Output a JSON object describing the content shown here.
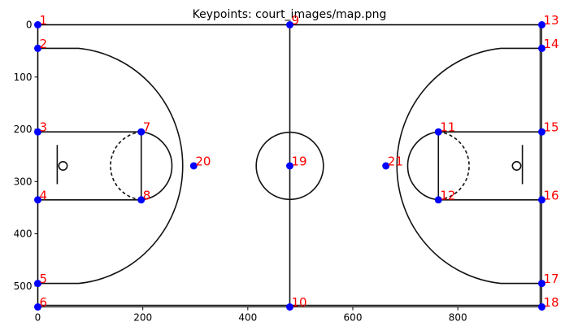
{
  "chart_data": {
    "type": "scatter",
    "title": "Keypoints: court_images/map.png",
    "xlabel": "",
    "ylabel": "",
    "xlim": [
      0,
      960
    ],
    "ylim": [
      540,
      0
    ],
    "x_ticks": [
      0,
      200,
      400,
      600,
      800
    ],
    "y_ticks": [
      0,
      100,
      200,
      300,
      400,
      500
    ],
    "marker_color": "#0000ff",
    "label_color": "#ff0000",
    "court_line_color": "#111111",
    "keypoints": [
      {
        "label": "1",
        "x": 0,
        "y": 0
      },
      {
        "label": "2",
        "x": 0,
        "y": 45
      },
      {
        "label": "3",
        "x": 0,
        "y": 205
      },
      {
        "label": "4",
        "x": 0,
        "y": 335
      },
      {
        "label": "5",
        "x": 0,
        "y": 495
      },
      {
        "label": "6",
        "x": 0,
        "y": 540
      },
      {
        "label": "7",
        "x": 197,
        "y": 205
      },
      {
        "label": "8",
        "x": 197,
        "y": 335
      },
      {
        "label": "9",
        "x": 480,
        "y": 0
      },
      {
        "label": "10",
        "x": 480,
        "y": 540
      },
      {
        "label": "11",
        "x": 763,
        "y": 205
      },
      {
        "label": "12",
        "x": 763,
        "y": 335
      },
      {
        "label": "13",
        "x": 960,
        "y": 0
      },
      {
        "label": "14",
        "x": 960,
        "y": 45
      },
      {
        "label": "15",
        "x": 960,
        "y": 205
      },
      {
        "label": "16",
        "x": 960,
        "y": 335
      },
      {
        "label": "17",
        "x": 960,
        "y": 495
      },
      {
        "label": "18",
        "x": 960,
        "y": 540
      },
      {
        "label": "19",
        "x": 480,
        "y": 270
      },
      {
        "label": "20",
        "x": 297,
        "y": 270
      },
      {
        "label": "21",
        "x": 663,
        "y": 270
      }
    ]
  }
}
